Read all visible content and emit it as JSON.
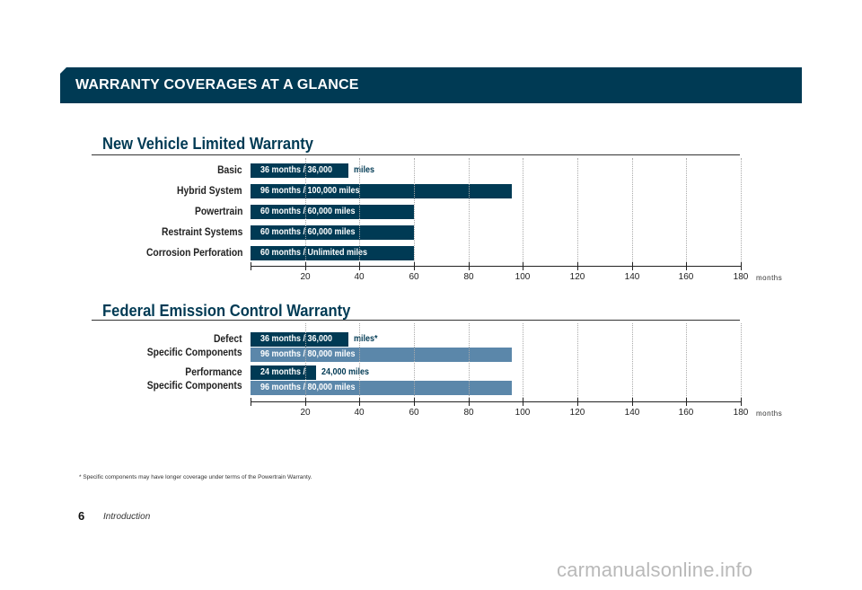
{
  "header": {
    "title": "WARRANTY COVERAGES AT A GLANCE"
  },
  "chart_data": [
    {
      "type": "bar",
      "title": "New Vehicle Limited Warranty",
      "orientation": "horizontal",
      "xunit": "months",
      "xlim": [
        10,
        180
      ],
      "xticks": [
        20,
        40,
        60,
        80,
        100,
        120,
        140,
        160,
        180
      ],
      "grid": true,
      "series": [
        {
          "label": "Basic",
          "values": [
            36
          ],
          "text": "36 months  / 36,000",
          "suffix": "miles",
          "color": "#003a54"
        },
        {
          "label": "Hybrid System",
          "values": [
            96
          ],
          "text": "96 months  /  100,000 miles",
          "suffix": "",
          "color": "#003a54"
        },
        {
          "label": "Powertrain",
          "values": [
            60
          ],
          "text": "60 months  /  60,000 miles",
          "suffix": "",
          "color": "#003a54"
        },
        {
          "label": "Restraint Systems",
          "values": [
            60
          ],
          "text": "60 months  /  60,000 miles",
          "suffix": "",
          "color": "#003a54"
        },
        {
          "label": "Corrosion Perforation",
          "values": [
            60
          ],
          "text": "60 months  /  Unlimited miles",
          "suffix": "",
          "color": "#003a54"
        }
      ]
    },
    {
      "type": "bar",
      "title": "Federal Emission Control Warranty",
      "orientation": "horizontal",
      "xunit": "months",
      "xlim": [
        10,
        180
      ],
      "xticks": [
        20,
        40,
        60,
        80,
        100,
        120,
        140,
        160,
        180
      ],
      "grid": true,
      "groups": [
        {
          "label_lines": [
            "Defect",
            "Specific Components"
          ]
        },
        {
          "label_lines": [
            "Performance",
            "Specific Components"
          ]
        }
      ],
      "series": [
        {
          "group": 0,
          "values": [
            36
          ],
          "text": "36 months  / 36,000",
          "suffix": "miles*",
          "color": "#003a54"
        },
        {
          "group": 0,
          "values": [
            96
          ],
          "text": "96 months  /  80,000 miles",
          "suffix": "",
          "color": "#5b87aa"
        },
        {
          "group": 1,
          "values": [
            24
          ],
          "text": "24 months  /",
          "suffix": "24,000 miles",
          "color": "#003a54"
        },
        {
          "group": 1,
          "values": [
            96
          ],
          "text": "96 months  /  80,000 miles",
          "suffix": "",
          "color": "#5b87aa"
        }
      ]
    }
  ],
  "footnote": "* Specific components may have longer coverage under terms of the Powertrain Warranty.",
  "footer": {
    "page_number": "6",
    "section": "Introduction"
  },
  "watermark": "carmanualsonline.info"
}
